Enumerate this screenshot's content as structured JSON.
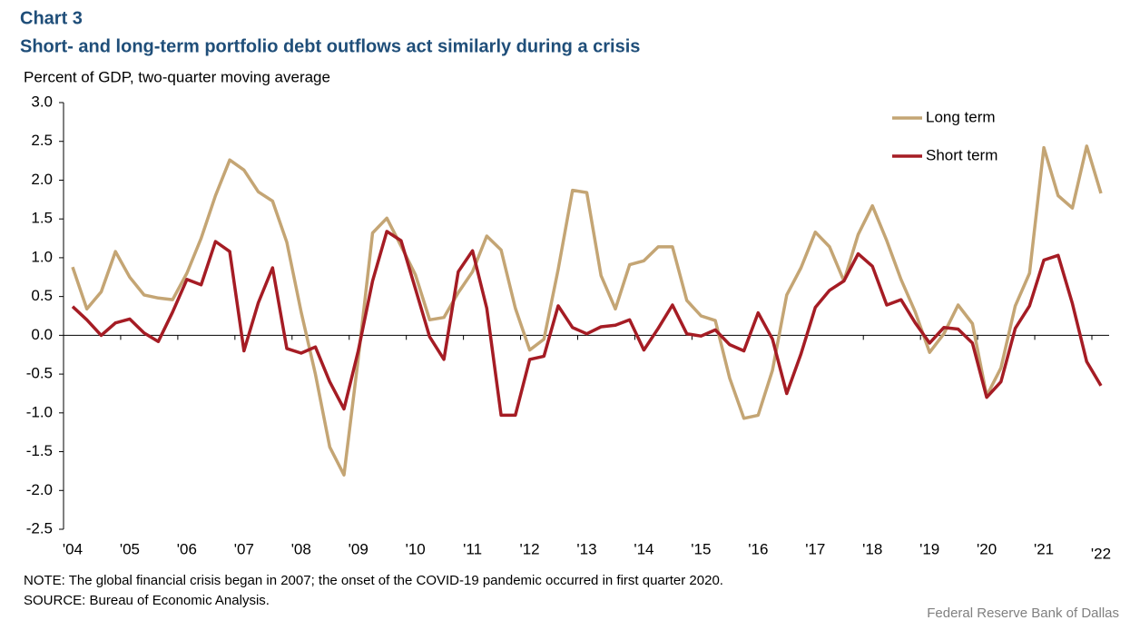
{
  "chart_data": {
    "type": "line",
    "title": "Chart 3",
    "subtitle": "Short- and long-term portfolio debt outflows act similarly during a crisis",
    "y_label": "Percent of GDP, two-quarter moving  average",
    "note": "NOTE: The global financial crisis began in 2007; the onset of the COVID-19  pandemic occurred in first quarter 2020.",
    "source": "SOURCE:  Bureau of Economic  Analysis.",
    "credit": "Federal Reserve  Bank of Dallas",
    "legend": "top-right",
    "categories": [
      "'04",
      null,
      null,
      null,
      "'05",
      null,
      null,
      null,
      "'06",
      null,
      null,
      null,
      "'07",
      null,
      null,
      null,
      "'08",
      null,
      null,
      null,
      "'09",
      null,
      null,
      null,
      "'10",
      null,
      null,
      null,
      "'11",
      null,
      null,
      null,
      "'12",
      null,
      null,
      null,
      "'13",
      null,
      null,
      null,
      "'14",
      null,
      null,
      null,
      "'15",
      null,
      null,
      null,
      "'16",
      null,
      null,
      null,
      "'17",
      null,
      null,
      null,
      "'18",
      null,
      null,
      null,
      "'19",
      null,
      null,
      null,
      "'20",
      null,
      null,
      null,
      "'21",
      null,
      null,
      null,
      "'22"
    ],
    "series": [
      {
        "name": "Long term",
        "color": "#c4a574",
        "values": [
          0.88,
          0.34,
          0.56,
          1.08,
          0.75,
          0.52,
          0.48,
          0.46,
          0.8,
          1.25,
          1.8,
          2.26,
          2.13,
          1.85,
          1.73,
          1.2,
          0.3,
          -0.5,
          -1.44,
          -1.8,
          -0.3,
          1.32,
          1.51,
          1.15,
          0.78,
          0.2,
          0.23,
          0.55,
          0.82,
          1.28,
          1.1,
          0.35,
          -0.19,
          -0.05,
          0.85,
          1.87,
          1.84,
          0.77,
          0.34,
          0.91,
          0.96,
          1.14,
          1.14,
          0.45,
          0.25,
          0.19,
          -0.55,
          -1.07,
          -1.03,
          -0.45,
          0.52,
          0.87,
          1.33,
          1.14,
          0.7,
          1.3,
          1.67,
          1.22,
          0.72,
          0.3,
          -0.22,
          0.02,
          0.39,
          0.15,
          -0.78,
          -0.42,
          0.38,
          0.8,
          2.42,
          1.8,
          1.64,
          2.44,
          1.83
        ]
      },
      {
        "name": "Short term",
        "color": "#a51c24",
        "values": [
          0.37,
          0.2,
          0.0,
          0.16,
          0.21,
          0.03,
          -0.08,
          0.3,
          0.72,
          0.65,
          1.21,
          1.08,
          -0.2,
          0.42,
          0.87,
          -0.17,
          -0.23,
          -0.15,
          -0.6,
          -0.95,
          -0.2,
          0.7,
          1.34,
          1.22,
          0.6,
          -0.02,
          -0.31,
          0.82,
          1.09,
          0.35,
          -1.03,
          -1.03,
          -0.31,
          -0.27,
          0.38,
          0.1,
          0.02,
          0.11,
          0.13,
          0.2,
          -0.19,
          0.09,
          0.39,
          0.02,
          -0.01,
          0.07,
          -0.12,
          -0.2,
          0.29,
          -0.05,
          -0.75,
          -0.24,
          0.36,
          0.58,
          0.7,
          1.05,
          0.89,
          0.39,
          0.46,
          0.16,
          -0.1,
          0.1,
          0.08,
          -0.1,
          -0.8,
          -0.6,
          0.09,
          0.38,
          0.97,
          1.03,
          0.41,
          -0.34,
          -0.65
        ]
      }
    ],
    "ylim": [
      -2.5,
      3.0
    ],
    "yticks": [
      {
        "value": -2.5,
        "label": "-2.5"
      },
      {
        "value": -2,
        "label": "-2.0"
      },
      {
        "value": -1.5,
        "label": "-1.5"
      },
      {
        "value": -1,
        "label": "-1.0"
      },
      {
        "value": -0.5,
        "label": "-0.5"
      },
      {
        "value": 0,
        "label": "0.0"
      },
      {
        "value": 0.5,
        "label": "0.5"
      },
      {
        "value": 1,
        "label": "1.0"
      },
      {
        "value": 1.5,
        "label": "1.5"
      },
      {
        "value": 2,
        "label": "2.0"
      },
      {
        "value": 2.5,
        "label": "2.5"
      },
      {
        "value": 3,
        "label": "3.0"
      }
    ]
  }
}
